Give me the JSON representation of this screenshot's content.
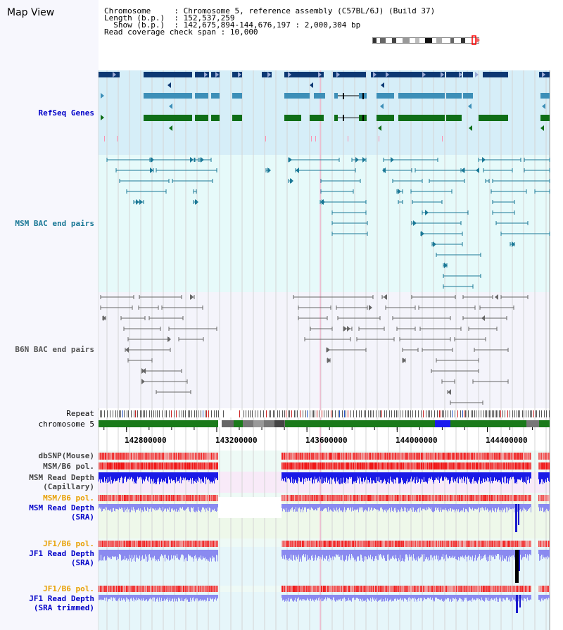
{
  "title": "Map View",
  "info": {
    "chromosome_label": "Chromosome",
    "chromosome_value": ": Chromosome 5, reference assembly (C57BL/6J) (Build 37)",
    "length_label": "Length (b.p.)",
    "length_value": ": 152,537,259",
    "show_label": "Show (b.p.)",
    "show_value": ": 142,675,894-144,676,197 : 2,000,304 bp",
    "span_label": "Read coverage check span",
    "span_value": ": 10,000"
  },
  "view": {
    "start_bp": 142675894,
    "end_bp": 144676197
  },
  "axis": {
    "ticks": [
      142800000,
      143200000,
      143600000,
      144000000,
      144400000
    ],
    "tick_labels": [
      "142800000",
      "143200000",
      "143600000",
      "144000000",
      "144400000"
    ]
  },
  "tracks": {
    "refseq": "RefSeq Genes",
    "msm_bac": "MSM BAC end pairs",
    "b6n_bac": "B6N BAC end pairs",
    "repeat": "Repeat",
    "chromosome": "chromosome 5",
    "dbsnp": "dbSNP(Mouse)",
    "msm_b6_pol_1": "MSM/B6 pol.",
    "msm_depth_cap_1": "MSM Read Depth",
    "msm_depth_cap_2": "(Capillary)",
    "msm_b6_pol_2": "MSM/B6 pol.",
    "msm_depth_sra_1": "MSM Read Depth",
    "msm_depth_sra_2": "(SRA)",
    "jf1_pol_1": "JF1/B6 pol.",
    "jf1_depth_sra_1": "JF1 Read Depth",
    "jf1_depth_sra_2": "(SRA)",
    "jf1_pol_2": "JF1/B6 pol.",
    "jf1_depth_trim_1": "JF1 Read Depth",
    "jf1_depth_trim_2": "(SRA trimmed)"
  },
  "colors": {
    "refseq_bg": "#d6eef8",
    "msm_bg": "#e6fafa",
    "b6n_bg": "#f4f4fb",
    "refseq_dark": "#0d3873",
    "refseq_mid": "#3d8fb8",
    "refseq_green": "#0f6e17",
    "msm_pair": "#1a7896",
    "b6n_pair": "#666666",
    "chrom_bar": "#1a7a1a",
    "pol_red": "#e83838",
    "depth_blue": "#1a1ae6",
    "depth_light": "#8a8af0",
    "label_blue": "#0000c8",
    "label_orange": "#e8a000",
    "label_teal": "#1a7896"
  }
}
